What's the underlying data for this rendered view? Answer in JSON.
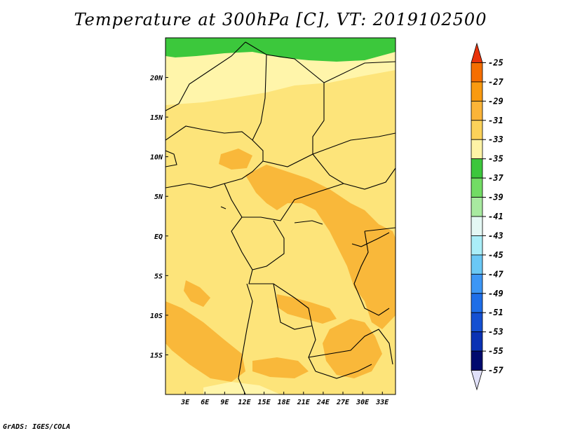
{
  "title": "Temperature at 300hPa [C], VT: 2019102500",
  "credit": "GrADS: IGES/COLA",
  "map": {
    "lon_labels": [
      "3E",
      "6E",
      "9E",
      "12E",
      "15E",
      "18E",
      "21E",
      "24E",
      "27E",
      "30E",
      "33E"
    ],
    "lon_values": [
      3,
      6,
      9,
      12,
      15,
      18,
      21,
      24,
      27,
      30,
      33
    ],
    "lat_labels": [
      "20N",
      "15N",
      "10N",
      "5N",
      "EQ",
      "5S",
      "10S",
      "15S"
    ],
    "lat_values": [
      20,
      15,
      10,
      5,
      0,
      -5,
      -10,
      -15
    ],
    "extent": {
      "lon_min": 0,
      "lon_max": 35,
      "lat_min": -20,
      "lat_max": 25
    },
    "colors": {
      "band_-37": "#3cc83c",
      "band_-35": "#fff5aa",
      "band_-33": "#fde47a",
      "band_-31": "#f9b83a",
      "border": "#000000"
    }
  },
  "colorbar": {
    "labels": [
      "-25",
      "-27",
      "-29",
      "-31",
      "-33",
      "-35",
      "-37",
      "-39",
      "-41",
      "-43",
      "-45",
      "-47",
      "-49",
      "-51",
      "-53",
      "-55",
      "-57"
    ],
    "colors": [
      "#e8320a",
      "#f56e00",
      "#f99a10",
      "#fbb438",
      "#fcd25a",
      "#fef3a6",
      "#3cc63c",
      "#72dc64",
      "#a8eaa0",
      "#e4f8f4",
      "#aaeef8",
      "#6ac8f5",
      "#3c96f5",
      "#1e6ee8",
      "#1450d2",
      "#0a32b4",
      "#000a6e",
      "#e0e0f8"
    ]
  }
}
